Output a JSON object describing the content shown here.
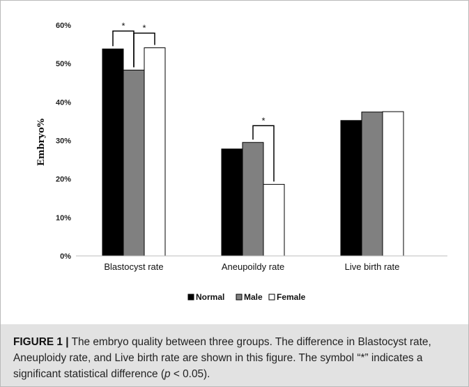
{
  "chart_data": {
    "type": "bar",
    "ylabel": "Embryo%",
    "ylim": [
      0,
      60
    ],
    "yticks": [
      "0%",
      "10%",
      "20%",
      "30%",
      "40%",
      "50%",
      "60%"
    ],
    "grid": false,
    "legend_position": "bottom",
    "categories": [
      "Blastocyst rate",
      "Aneupoildy rate",
      "Live birth rate"
    ],
    "series": [
      {
        "name": "Normal",
        "color": "#000000",
        "values": [
          53.8,
          27.8,
          35.2
        ]
      },
      {
        "name": "Male",
        "color": "#808080",
        "values": [
          48.3,
          29.5,
          37.4
        ]
      },
      {
        "name": "Female",
        "color": "#ffffff",
        "values": [
          54.1,
          18.6,
          37.5
        ]
      }
    ],
    "significance": [
      {
        "category": 0,
        "between": [
          0,
          1
        ],
        "label": "*"
      },
      {
        "category": 0,
        "between": [
          1,
          2
        ],
        "label": "*"
      },
      {
        "category": 1,
        "between": [
          1,
          2
        ],
        "label": "*"
      }
    ]
  },
  "caption": {
    "label": "FIGURE 1 |",
    "text_before_p": "The embryo quality between three groups. The difference in Blastocyst rate, Aneuploidy rate, and Live birth rate are shown in this figure. The symbol “*” indicates a significant statistical difference (",
    "p_symbol": "p",
    "text_after_p": " < 0.05)."
  }
}
